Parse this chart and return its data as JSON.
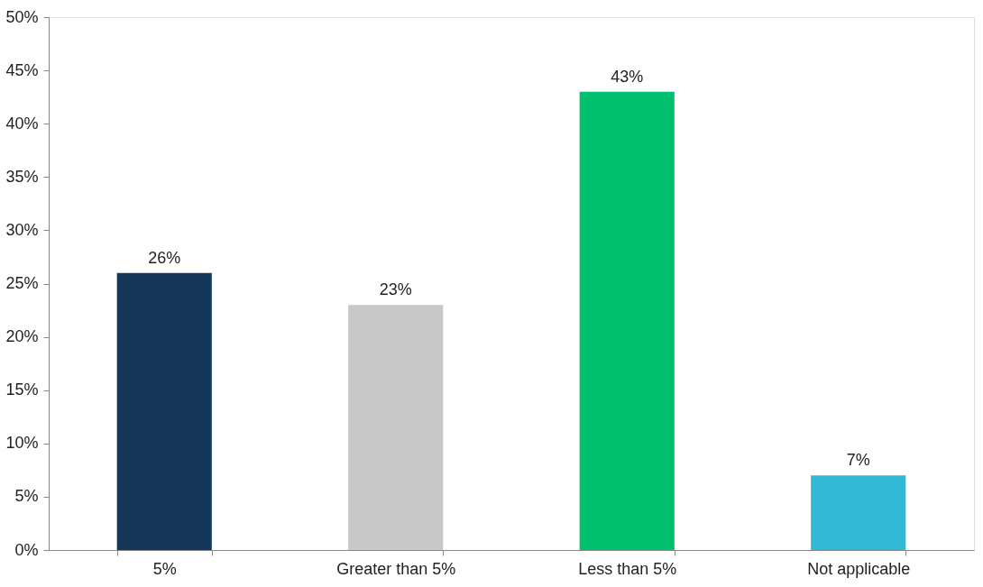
{
  "chart_data": {
    "type": "bar",
    "categories": [
      "5%",
      "Greater than 5%",
      "Less than 5%",
      "Not applicable"
    ],
    "values": [
      26,
      23,
      43,
      7
    ],
    "colors": [
      "#14375a",
      "#c8c8c8",
      "#00bf6f",
      "#31b9d6"
    ],
    "value_labels": [
      "26%",
      "23%",
      "43%",
      "7%"
    ],
    "ylim": [
      0,
      50
    ],
    "yticks": [
      {
        "value": 0,
        "label": "0%"
      },
      {
        "value": 5,
        "label": "5%"
      },
      {
        "value": 10,
        "label": "10%"
      },
      {
        "value": 15,
        "label": "15%"
      },
      {
        "value": 20,
        "label": "20%"
      },
      {
        "value": 25,
        "label": "25%"
      },
      {
        "value": 30,
        "label": "30%"
      },
      {
        "value": 35,
        "label": "35%"
      },
      {
        "value": 40,
        "label": "40%"
      },
      {
        "value": 45,
        "label": "45%"
      },
      {
        "value": 50,
        "label": "50%"
      }
    ],
    "grid": false
  }
}
